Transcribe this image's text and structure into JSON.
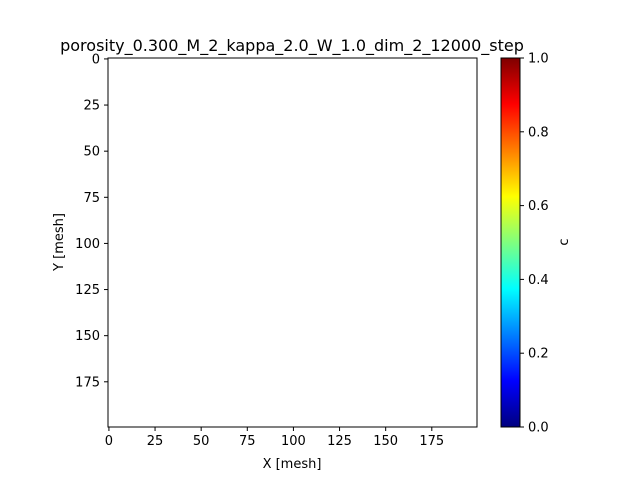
{
  "chart_data": {
    "type": "heatmap",
    "title": "porosity_0.300_M_2_kappa_2.0_W_1.0_dim_2_12000_step",
    "xlabel": "X [mesh]",
    "ylabel": "Y [mesh]",
    "x_ticks": [
      0,
      25,
      50,
      75,
      100,
      125,
      150,
      175
    ],
    "y_ticks": [
      0,
      25,
      50,
      75,
      100,
      125,
      150,
      175
    ],
    "xlim": [
      -0.5,
      199.5
    ],
    "ylim": [
      199.5,
      -0.5
    ],
    "y_axis_inverted": true,
    "grid": false,
    "values": "uniform",
    "field_value": 1.0,
    "field_color": "#ffffff",
    "colorbar": {
      "label": "c",
      "colormap": "jet",
      "range": [
        0.0,
        1.0
      ],
      "ticks": [
        0.0,
        0.2,
        0.4,
        0.6,
        0.8,
        1.0
      ],
      "tick_labels": [
        "0.0",
        "0.2",
        "0.4",
        "0.6",
        "0.8",
        "1.0"
      ],
      "stops": [
        "#00007f",
        "#0000ff",
        "#007fff",
        "#00ffff",
        "#7fff7f",
        "#ffff00",
        "#ff7f00",
        "#ff0000",
        "#7f0000"
      ]
    }
  }
}
